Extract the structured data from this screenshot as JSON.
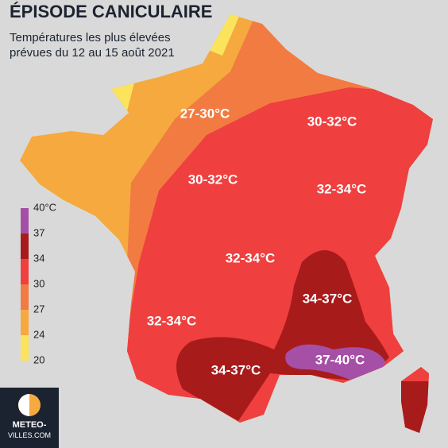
{
  "header": {
    "title": "ÉPISODE CANICULAIRE",
    "subtitle_lines": [
      "Températures les plus élevées",
      "prévues du 12 au 15 août 2021"
    ]
  },
  "legend": {
    "items": [
      {
        "label": "40°C",
        "color": "#a64fa6"
      },
      {
        "label": "37",
        "color": "#a81b1b"
      },
      {
        "label": "34",
        "color": "#ef3f3f"
      },
      {
        "label": "30",
        "color": "#f27b42"
      },
      {
        "label": "27",
        "color": "#f6a93f"
      },
      {
        "label": "24",
        "color": "#fbe35c"
      },
      {
        "label": "20",
        "color": null
      }
    ]
  },
  "map": {
    "labels": [
      "27-30°C",
      "30-32°C",
      "30-32°C",
      "32-34°C",
      "32-34°C",
      "34-37°C",
      "32-34°C",
      "37-40°C",
      "34-37°C"
    ]
  },
  "logo": {
    "lines": [
      "METEO-",
      "VILLES.COM"
    ]
  }
}
